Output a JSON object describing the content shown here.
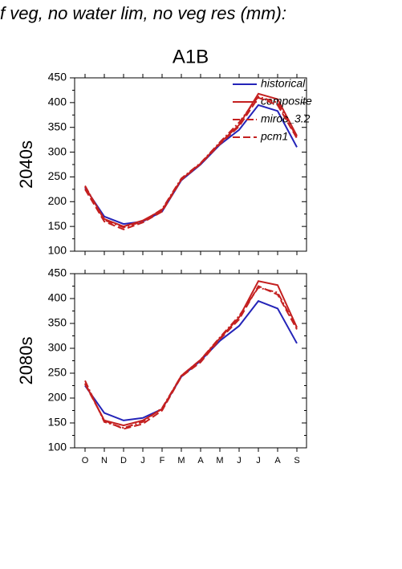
{
  "title": "f veg, no water lim, no veg res (mm):",
  "chart_data": [
    {
      "type": "line",
      "title": "A1B",
      "ylabel": "2040s",
      "categories": [
        null,
        null,
        null,
        null,
        null,
        null,
        null,
        null,
        null,
        null,
        null,
        null
      ],
      "ylim": [
        100,
        450
      ],
      "yticks": [
        100,
        150,
        200,
        250,
        300,
        350,
        400,
        450
      ],
      "legend": "upper right",
      "series": [
        {
          "name": "historical",
          "color": "#2424b8",
          "dash": "solid",
          "values": [
            228,
            170,
            155,
            160,
            180,
            243,
            275,
            315,
            345,
            395,
            383,
            310
          ]
        },
        {
          "name": "composite",
          "color": "#c42020",
          "dash": "solid",
          "values": [
            230,
            165,
            150,
            162,
            183,
            245,
            277,
            318,
            355,
            418,
            407,
            333
          ]
        },
        {
          "name": "miroc_3.2",
          "color": "#c42020",
          "dash": "dashdot",
          "values": [
            232,
            163,
            148,
            160,
            185,
            247,
            278,
            320,
            360,
            412,
            400,
            330
          ]
        },
        {
          "name": "pcm1",
          "color": "#c42020",
          "dash": "dashed",
          "values": [
            225,
            160,
            144,
            158,
            180,
            244,
            276,
            316,
            352,
            410,
            395,
            328
          ]
        }
      ]
    },
    {
      "type": "line",
      "ylabel": "2080s",
      "categories": [
        "O",
        "N",
        "D",
        "J",
        "F",
        "M",
        "A",
        "M",
        "J",
        "J",
        "A",
        "S"
      ],
      "ylim": [
        100,
        450
      ],
      "yticks": [
        100,
        150,
        200,
        250,
        300,
        350,
        400,
        450
      ],
      "series": [
        {
          "color": "#2424b8",
          "dash": "solid",
          "values": [
            225,
            170,
            155,
            160,
            178,
            243,
            275,
            315,
            345,
            395,
            380,
            310
          ]
        },
        {
          "color": "#c42020",
          "dash": "solid",
          "values": [
            230,
            155,
            145,
            155,
            178,
            245,
            277,
            320,
            362,
            435,
            427,
            342
          ]
        },
        {
          "color": "#c42020",
          "dash": "dashdot",
          "values": [
            235,
            152,
            140,
            152,
            180,
            245,
            277,
            322,
            365,
            422,
            412,
            340
          ]
        },
        {
          "color": "#c42020",
          "dash": "dashed",
          "values": [
            228,
            155,
            138,
            148,
            175,
            243,
            272,
            318,
            358,
            425,
            408,
            338
          ]
        }
      ]
    }
  ]
}
